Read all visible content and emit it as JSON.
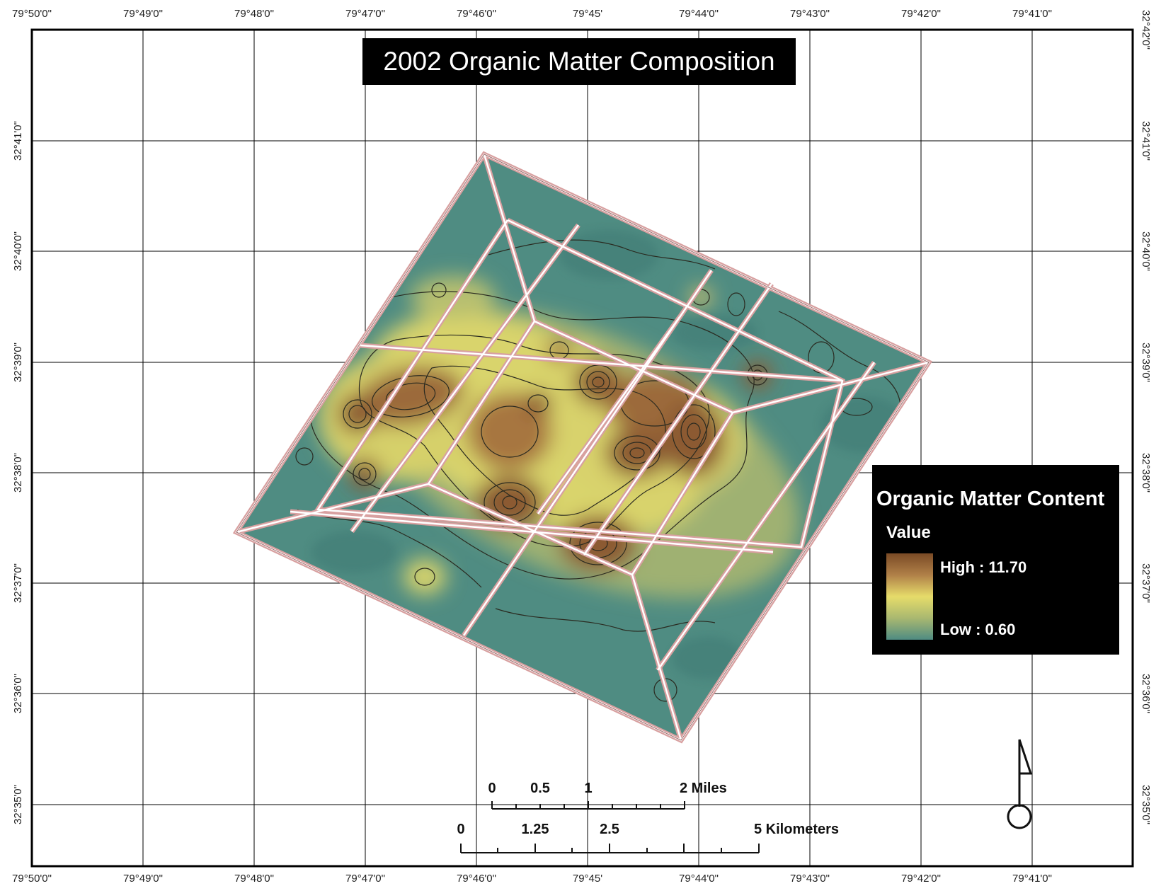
{
  "map": {
    "title": "2002 Organic Matter Composition"
  },
  "longitude_ticks": [
    "79°50'0\"",
    "79°49'0\"",
    "79°48'0\"",
    "79°47'0\"",
    "79°46'0\"",
    "79°45'",
    "79°44'0\"",
    "79°43'0\"",
    "79°42'0\"",
    "79°41'0\""
  ],
  "latitude_ticks": [
    "32°42'0\"",
    "32°41'0\"",
    "32°40'0\"",
    "32°39'0\"",
    "32°38'0\"",
    "32°37'0\"",
    "32°36'0\"",
    "32°35'0\""
  ],
  "legend": {
    "title": "Organic Matter Content",
    "subtitle": "Value",
    "high_label": "High : 11.70",
    "low_label": "Low : 0.60",
    "ramp_colors": [
      "#7a4a25",
      "#b08048",
      "#e6dc6a",
      "#a9b870",
      "#4f8c82"
    ]
  },
  "scale_bar": {
    "miles_labels": [
      "0",
      "0.5",
      "1",
      "2 Miles"
    ],
    "km_labels": [
      "0",
      "1.25",
      "2.5",
      "5 Kilometers"
    ]
  },
  "colors": {
    "low": "#4f8c82",
    "mid": "#e6dc6a",
    "high": "#7a4a25",
    "plot_outline": "#d8a0a0",
    "grid": "#000000"
  }
}
